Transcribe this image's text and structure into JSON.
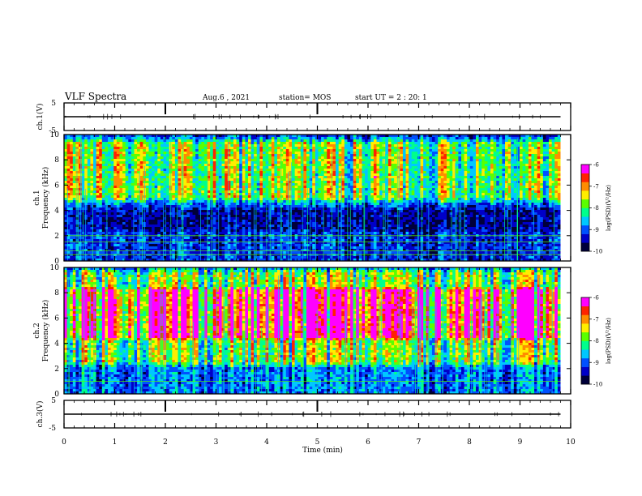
{
  "header": {
    "title": "VLF Spectra",
    "date": "Aug.6 , 2021",
    "station": "station= MOS",
    "start": "start UT = 2 : 20: 1"
  },
  "colors": {
    "colormap": [
      "#00003a",
      "#0000c8",
      "#0050ff",
      "#00c8ff",
      "#00ff8c",
      "#5aff00",
      "#ffee00",
      "#ff8c00",
      "#ff2200",
      "#ff00ff"
    ],
    "waveform": "#000000"
  },
  "chart_data": [
    {
      "type": "line",
      "name": "ch1-waveform",
      "ylabel": "ch.1(V)",
      "ylim": [
        -5,
        5
      ],
      "yticks": [
        "5",
        "-5"
      ],
      "xlim": [
        0,
        10
      ],
      "baseline": 0
    },
    {
      "type": "heatmap",
      "name": "ch1-spectrogram",
      "ylabel": "ch.1 Frequency (kHz)",
      "ylim": [
        0,
        10
      ],
      "yticks": [
        "0",
        "2",
        "4",
        "6",
        "8",
        "10"
      ],
      "xlim": [
        0,
        10
      ],
      "data_end_min": 9.8,
      "colorbar": {
        "label": "log(PSD)(V²/Hz)",
        "range": [
          -10,
          -6
        ],
        "ticks": [
          "-10",
          "-9",
          "-8",
          "-7",
          "-6"
        ]
      },
      "profile": {
        "bands": [
          {
            "lo": 5,
            "hi": 9.3,
            "level": 0.55
          },
          {
            "lo": 0,
            "hi": 2.2,
            "level": 0.2
          }
        ],
        "background": 0.12
      },
      "lines_khz": [
        0.5,
        0.8,
        1.5,
        2.0
      ]
    },
    {
      "type": "heatmap",
      "name": "ch2-spectrogram",
      "ylabel": "ch.2 Frequency (kHz)",
      "ylim": [
        0,
        10
      ],
      "yticks": [
        "0",
        "2",
        "4",
        "6",
        "8",
        "10"
      ],
      "xlim": [
        0,
        10
      ],
      "data_end_min": 9.8,
      "colorbar": {
        "label": "log(PSD)(V²/Hz)",
        "range": [
          -10,
          -6
        ],
        "ticks": [
          "-10",
          "-9",
          "-8",
          "-7",
          "-6"
        ]
      },
      "profile": {
        "bands": [
          {
            "lo": 4.5,
            "hi": 8.2,
            "level": 0.85
          },
          {
            "lo": 2.5,
            "hi": 9.6,
            "level": 0.55
          }
        ],
        "background": 0.28
      },
      "lines_khz": [
        1.0
      ]
    },
    {
      "type": "line",
      "name": "ch3-waveform",
      "ylabel": "ch.3(V)",
      "ylim": [
        -5,
        5
      ],
      "yticks": [
        "5",
        "-5"
      ],
      "xlim": [
        0,
        10
      ],
      "baseline": 0
    }
  ],
  "xaxis": {
    "label": "Time (min)",
    "ticks": [
      "0",
      "1",
      "2",
      "3",
      "4",
      "5",
      "6",
      "7",
      "8",
      "9",
      "10"
    ]
  }
}
